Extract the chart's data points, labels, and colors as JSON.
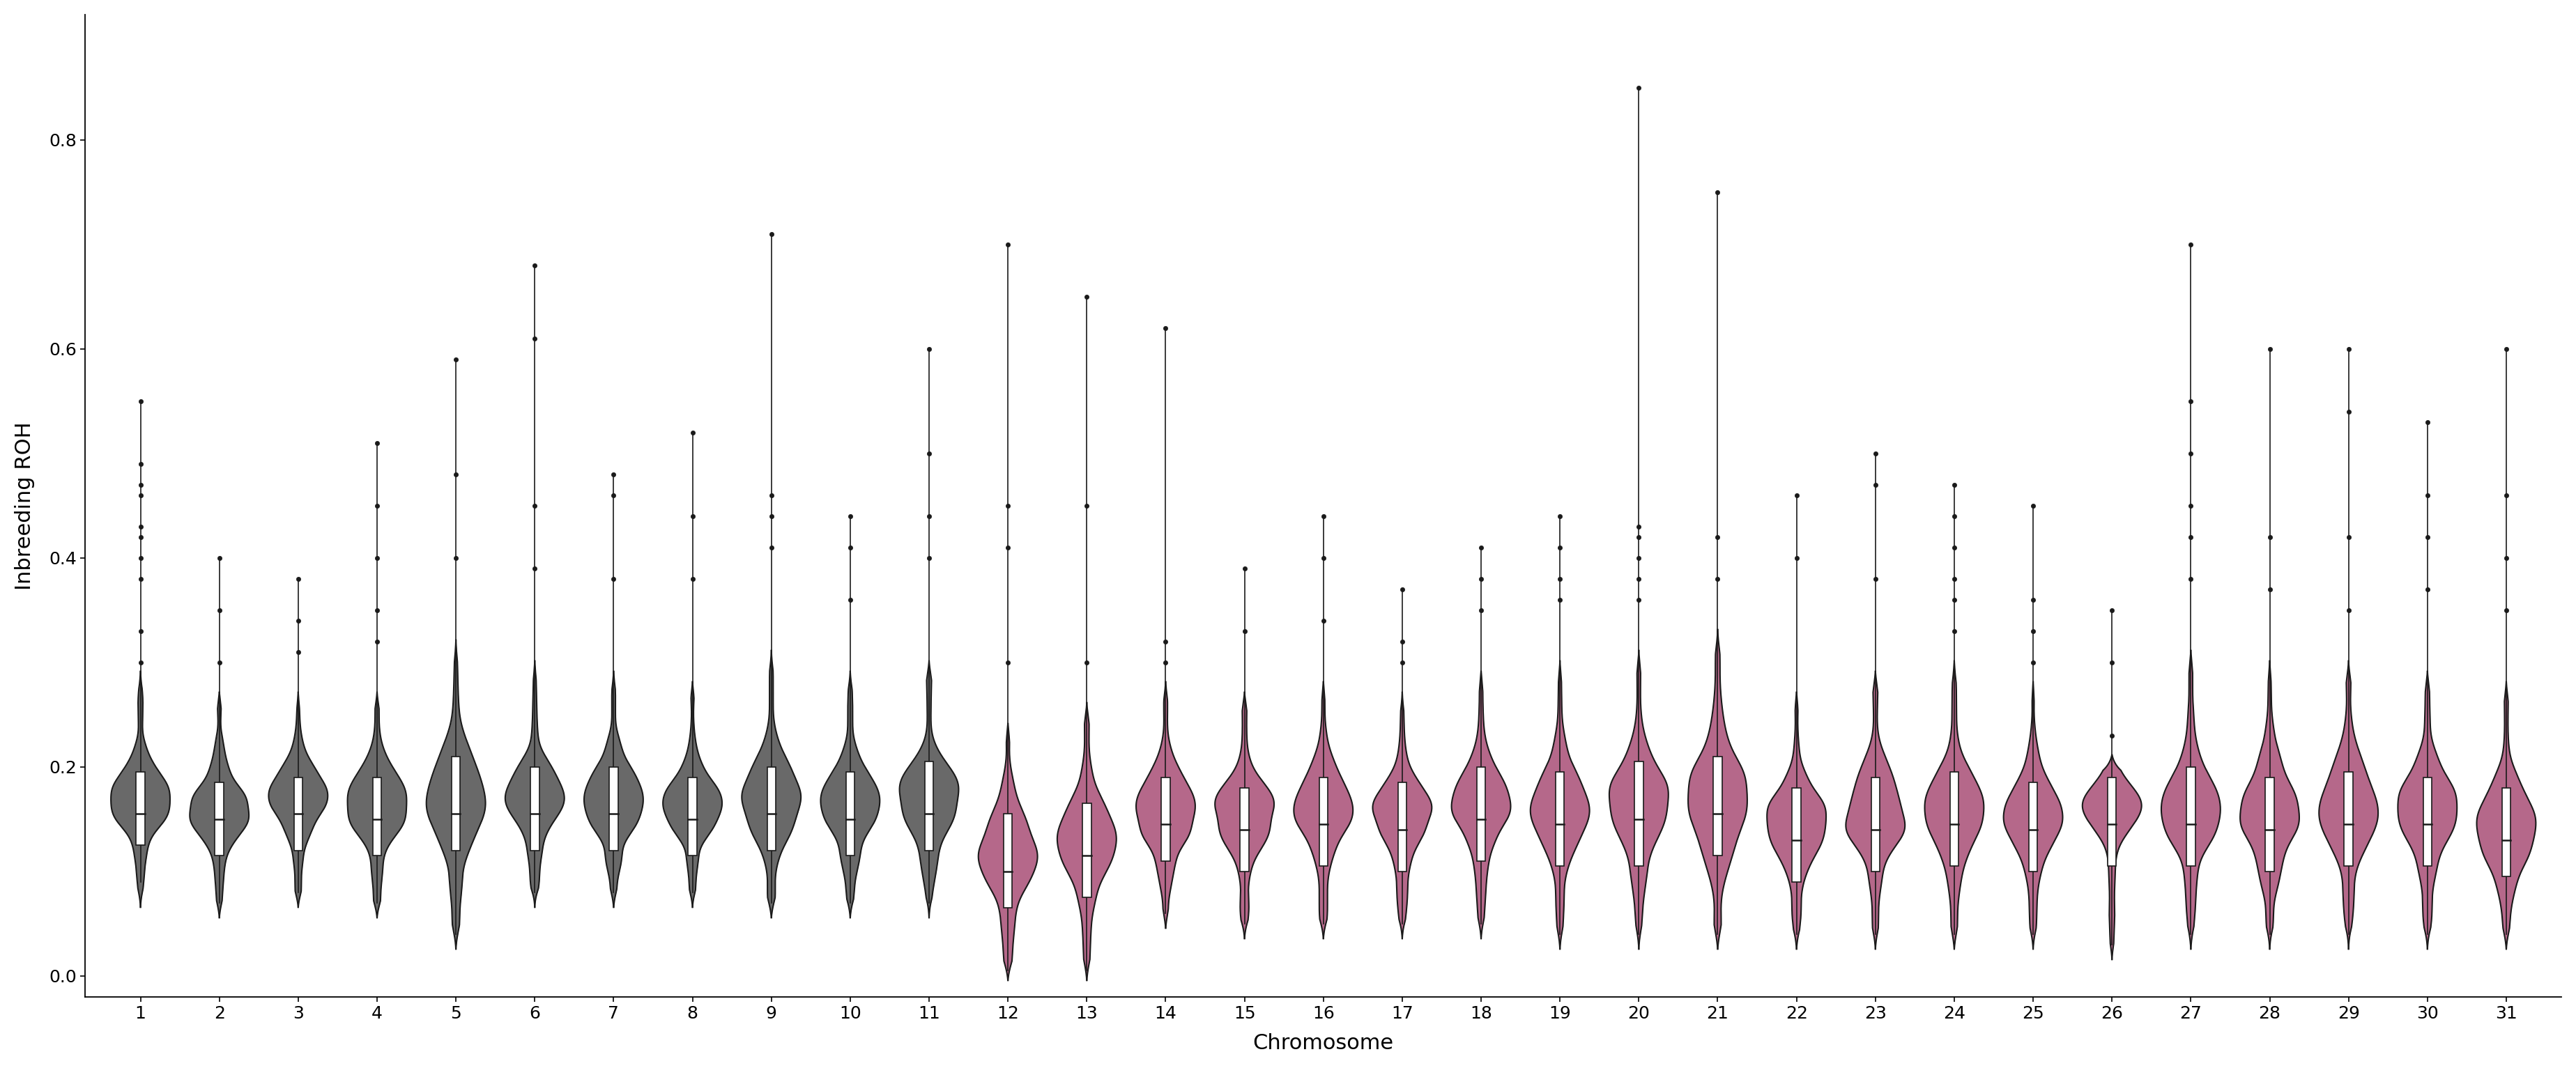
{
  "chromosomes": [
    1,
    2,
    3,
    4,
    5,
    6,
    7,
    8,
    9,
    10,
    11,
    12,
    13,
    14,
    15,
    16,
    17,
    18,
    19,
    20,
    21,
    22,
    23,
    24,
    25,
    26,
    27,
    28,
    29,
    30,
    31
  ],
  "color_gray": "#696969",
  "color_pink": "#b5688a",
  "color_threshold": 12,
  "violin_fill_alpha": 1.0,
  "violin_edge_color": "#1a1a1a",
  "violin_edge_lw": 1.5,
  "ylabel": "Inbreeding ROH",
  "xlabel": "Chromosome",
  "ylim_min": -0.02,
  "ylim_max": 0.92,
  "yticks": [
    0.0,
    0.2,
    0.4,
    0.6,
    0.8
  ],
  "background_color": "#ffffff",
  "whisker_color": "#1a1a1a",
  "outlier_color": "#1a1a1a",
  "figwidth": 36.96,
  "figheight": 15.33,
  "violin_width": 0.75,
  "params": {
    "1": {
      "median": 0.155,
      "q1": 0.125,
      "q3": 0.195,
      "whisker_low": 0.09,
      "whisker_high": 0.29,
      "outliers": [
        0.3,
        0.33,
        0.38,
        0.4,
        0.42,
        0.43,
        0.46,
        0.47,
        0.49,
        0.55
      ],
      "min_val": 0.07,
      "peak": 0.17
    },
    "2": {
      "median": 0.15,
      "q1": 0.115,
      "q3": 0.185,
      "whisker_low": 0.07,
      "whisker_high": 0.27,
      "outliers": [
        0.3,
        0.35,
        0.4
      ],
      "min_val": 0.06,
      "peak": 0.16
    },
    "3": {
      "median": 0.155,
      "q1": 0.12,
      "q3": 0.19,
      "whisker_low": 0.08,
      "whisker_high": 0.27,
      "outliers": [
        0.31,
        0.34,
        0.38
      ],
      "min_val": 0.07,
      "peak": 0.17
    },
    "4": {
      "median": 0.15,
      "q1": 0.115,
      "q3": 0.19,
      "whisker_low": 0.07,
      "whisker_high": 0.27,
      "outliers": [
        0.32,
        0.35,
        0.4,
        0.45,
        0.51
      ],
      "min_val": 0.06,
      "peak": 0.165
    },
    "5": {
      "median": 0.155,
      "q1": 0.12,
      "q3": 0.21,
      "whisker_low": 0.04,
      "whisker_high": 0.32,
      "outliers": [
        0.4,
        0.48,
        0.59
      ],
      "min_val": 0.03,
      "peak": 0.17
    },
    "6": {
      "median": 0.155,
      "q1": 0.12,
      "q3": 0.2,
      "whisker_low": 0.08,
      "whisker_high": 0.3,
      "outliers": [
        0.39,
        0.45,
        0.61,
        0.68
      ],
      "min_val": 0.07,
      "peak": 0.17
    },
    "7": {
      "median": 0.155,
      "q1": 0.12,
      "q3": 0.2,
      "whisker_low": 0.08,
      "whisker_high": 0.29,
      "outliers": [
        0.38,
        0.46,
        0.48
      ],
      "min_val": 0.07,
      "peak": 0.17
    },
    "8": {
      "median": 0.15,
      "q1": 0.115,
      "q3": 0.19,
      "whisker_low": 0.08,
      "whisker_high": 0.28,
      "outliers": [
        0.38,
        0.44,
        0.52
      ],
      "min_val": 0.07,
      "peak": 0.165
    },
    "9": {
      "median": 0.155,
      "q1": 0.12,
      "q3": 0.2,
      "whisker_low": 0.07,
      "whisker_high": 0.31,
      "outliers": [
        0.41,
        0.44,
        0.46,
        0.71
      ],
      "min_val": 0.06,
      "peak": 0.17
    },
    "10": {
      "median": 0.15,
      "q1": 0.115,
      "q3": 0.195,
      "whisker_low": 0.07,
      "whisker_high": 0.29,
      "outliers": [
        0.36,
        0.41,
        0.44
      ],
      "min_val": 0.06,
      "peak": 0.165
    },
    "11": {
      "median": 0.155,
      "q1": 0.12,
      "q3": 0.205,
      "whisker_low": 0.07,
      "whisker_high": 0.3,
      "outliers": [
        0.4,
        0.44,
        0.5,
        0.6
      ],
      "min_val": 0.06,
      "peak": 0.17
    },
    "12": {
      "median": 0.1,
      "q1": 0.065,
      "q3": 0.155,
      "whisker_low": 0.005,
      "whisker_high": 0.24,
      "outliers": [
        0.3,
        0.41,
        0.45,
        0.7
      ],
      "min_val": 0.0,
      "peak": 0.12
    },
    "13": {
      "median": 0.115,
      "q1": 0.075,
      "q3": 0.165,
      "whisker_low": 0.005,
      "whisker_high": 0.26,
      "outliers": [
        0.3,
        0.45,
        0.65
      ],
      "min_val": 0.0,
      "peak": 0.13
    },
    "14": {
      "median": 0.145,
      "q1": 0.11,
      "q3": 0.19,
      "whisker_low": 0.06,
      "whisker_high": 0.28,
      "outliers": [
        0.3,
        0.32,
        0.62
      ],
      "min_val": 0.05,
      "peak": 0.16
    },
    "15": {
      "median": 0.14,
      "q1": 0.1,
      "q3": 0.18,
      "whisker_low": 0.05,
      "whisker_high": 0.27,
      "outliers": [
        0.33,
        0.39
      ],
      "min_val": 0.04,
      "peak": 0.155
    },
    "16": {
      "median": 0.145,
      "q1": 0.105,
      "q3": 0.19,
      "whisker_low": 0.05,
      "whisker_high": 0.28,
      "outliers": [
        0.34,
        0.4,
        0.44
      ],
      "min_val": 0.04,
      "peak": 0.16
    },
    "17": {
      "median": 0.14,
      "q1": 0.1,
      "q3": 0.185,
      "whisker_low": 0.05,
      "whisker_high": 0.27,
      "outliers": [
        0.3,
        0.32,
        0.37
      ],
      "min_val": 0.04,
      "peak": 0.155
    },
    "18": {
      "median": 0.15,
      "q1": 0.11,
      "q3": 0.2,
      "whisker_low": 0.05,
      "whisker_high": 0.29,
      "outliers": [
        0.35,
        0.38,
        0.41
      ],
      "min_val": 0.04,
      "peak": 0.165
    },
    "19": {
      "median": 0.145,
      "q1": 0.105,
      "q3": 0.195,
      "whisker_low": 0.04,
      "whisker_high": 0.3,
      "outliers": [
        0.36,
        0.38,
        0.41,
        0.44
      ],
      "min_val": 0.03,
      "peak": 0.16
    },
    "20": {
      "median": 0.15,
      "q1": 0.105,
      "q3": 0.205,
      "whisker_low": 0.04,
      "whisker_high": 0.31,
      "outliers": [
        0.36,
        0.38,
        0.4,
        0.42,
        0.43,
        0.85
      ],
      "min_val": 0.03,
      "peak": 0.165
    },
    "21": {
      "median": 0.155,
      "q1": 0.115,
      "q3": 0.21,
      "whisker_low": 0.04,
      "whisker_high": 0.33,
      "outliers": [
        0.38,
        0.42,
        0.75
      ],
      "min_val": 0.03,
      "peak": 0.17
    },
    "22": {
      "median": 0.13,
      "q1": 0.09,
      "q3": 0.18,
      "whisker_low": 0.04,
      "whisker_high": 0.27,
      "outliers": [
        0.4,
        0.46
      ],
      "min_val": 0.03,
      "peak": 0.145
    },
    "23": {
      "median": 0.14,
      "q1": 0.1,
      "q3": 0.19,
      "whisker_low": 0.04,
      "whisker_high": 0.29,
      "outliers": [
        0.38,
        0.47,
        0.5
      ],
      "min_val": 0.03,
      "peak": 0.155
    },
    "24": {
      "median": 0.145,
      "q1": 0.105,
      "q3": 0.195,
      "whisker_low": 0.04,
      "whisker_high": 0.3,
      "outliers": [
        0.33,
        0.36,
        0.38,
        0.41,
        0.44,
        0.47
      ],
      "min_val": 0.03,
      "peak": 0.16
    },
    "25": {
      "median": 0.14,
      "q1": 0.1,
      "q3": 0.185,
      "whisker_low": 0.04,
      "whisker_high": 0.28,
      "outliers": [
        0.3,
        0.33,
        0.36,
        0.45
      ],
      "min_val": 0.03,
      "peak": 0.155
    },
    "26": {
      "median": 0.145,
      "q1": 0.105,
      "q3": 0.19,
      "whisker_low": 0.03,
      "whisker_high": 0.21,
      "outliers": [
        0.23,
        0.3,
        0.35
      ],
      "min_val": 0.02,
      "peak": 0.16
    },
    "27": {
      "median": 0.145,
      "q1": 0.105,
      "q3": 0.2,
      "whisker_low": 0.04,
      "whisker_high": 0.31,
      "outliers": [
        0.38,
        0.42,
        0.45,
        0.5,
        0.55,
        0.7
      ],
      "min_val": 0.03,
      "peak": 0.16
    },
    "28": {
      "median": 0.14,
      "q1": 0.1,
      "q3": 0.19,
      "whisker_low": 0.04,
      "whisker_high": 0.3,
      "outliers": [
        0.37,
        0.42,
        0.6
      ],
      "min_val": 0.03,
      "peak": 0.155
    },
    "29": {
      "median": 0.145,
      "q1": 0.105,
      "q3": 0.195,
      "whisker_low": 0.04,
      "whisker_high": 0.3,
      "outliers": [
        0.35,
        0.42,
        0.54,
        0.6
      ],
      "min_val": 0.03,
      "peak": 0.16
    },
    "30": {
      "median": 0.145,
      "q1": 0.105,
      "q3": 0.19,
      "whisker_low": 0.04,
      "whisker_high": 0.29,
      "outliers": [
        0.37,
        0.42,
        0.46,
        0.53
      ],
      "min_val": 0.03,
      "peak": 0.16
    },
    "31": {
      "median": 0.13,
      "q1": 0.095,
      "q3": 0.18,
      "whisker_low": 0.04,
      "whisker_high": 0.28,
      "outliers": [
        0.35,
        0.4,
        0.46,
        0.6
      ],
      "min_val": 0.03,
      "peak": 0.145
    }
  }
}
